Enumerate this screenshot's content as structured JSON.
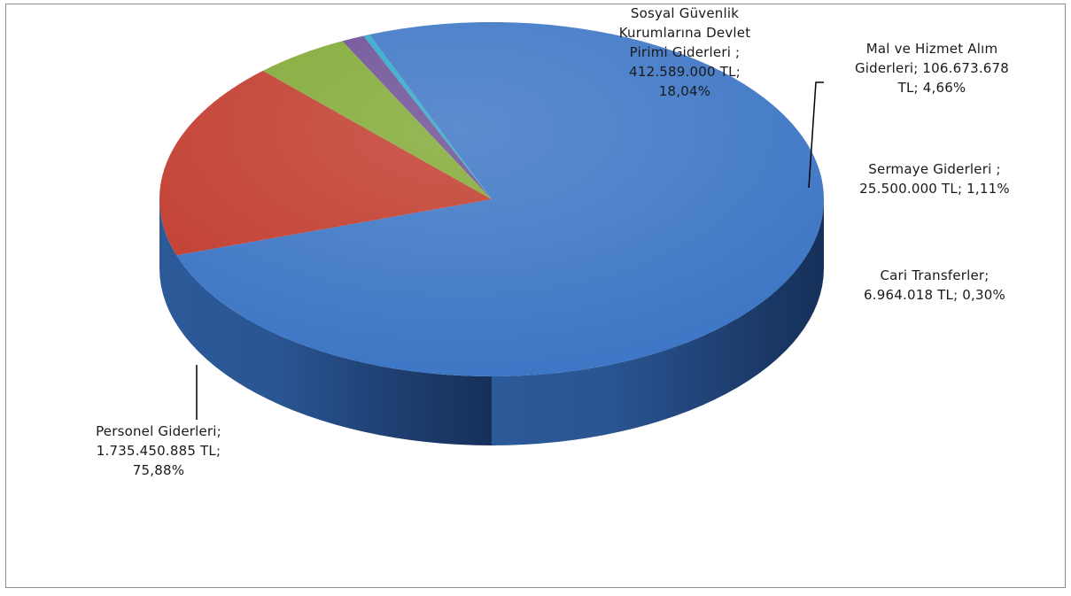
{
  "chart_data": {
    "type": "pie",
    "style": "3d",
    "unit": "TL",
    "slices": [
      {
        "name": "Personel Giderleri",
        "value": 1735450885,
        "percent": 75.88,
        "color": "#3a74c4",
        "label_lines": [
          "Personel Giderleri;",
          "1.735.450.885 TL;",
          "75,88%"
        ]
      },
      {
        "name": "Sosyal Güvenlik Kurumlarına Devlet Primi Giderleri",
        "value": 412589000,
        "percent": 18.04,
        "color": "#c0392b",
        "label_lines": [
          "Sosyal Güvenlik",
          "Kurumlarına Devlet",
          "Pirimi Giderleri ;",
          "412.589.000 TL;",
          "18,04%"
        ]
      },
      {
        "name": "Mal ve Hizmet Alım Giderleri",
        "value": 106673678,
        "percent": 4.66,
        "color": "#7fa832",
        "label_lines": [
          "Mal ve Hizmet Alım",
          "Giderleri; 106.673.678",
          "TL; 4,66%"
        ]
      },
      {
        "name": "Sermaye Giderleri",
        "value": 25500000,
        "percent": 1.11,
        "color": "#6a4c93",
        "label_lines": [
          "Sermaye Giderleri ;",
          "25.500.000 TL; 1,11%"
        ]
      },
      {
        "name": "Cari Transferler",
        "value": 6964018,
        "percent": 0.3,
        "color": "#2aa7c9",
        "label_lines": [
          "Cari Transferler;",
          "6.964.018 TL; 0,30%"
        ]
      }
    ],
    "legend": "none",
    "leader_line_color": "#000000"
  }
}
